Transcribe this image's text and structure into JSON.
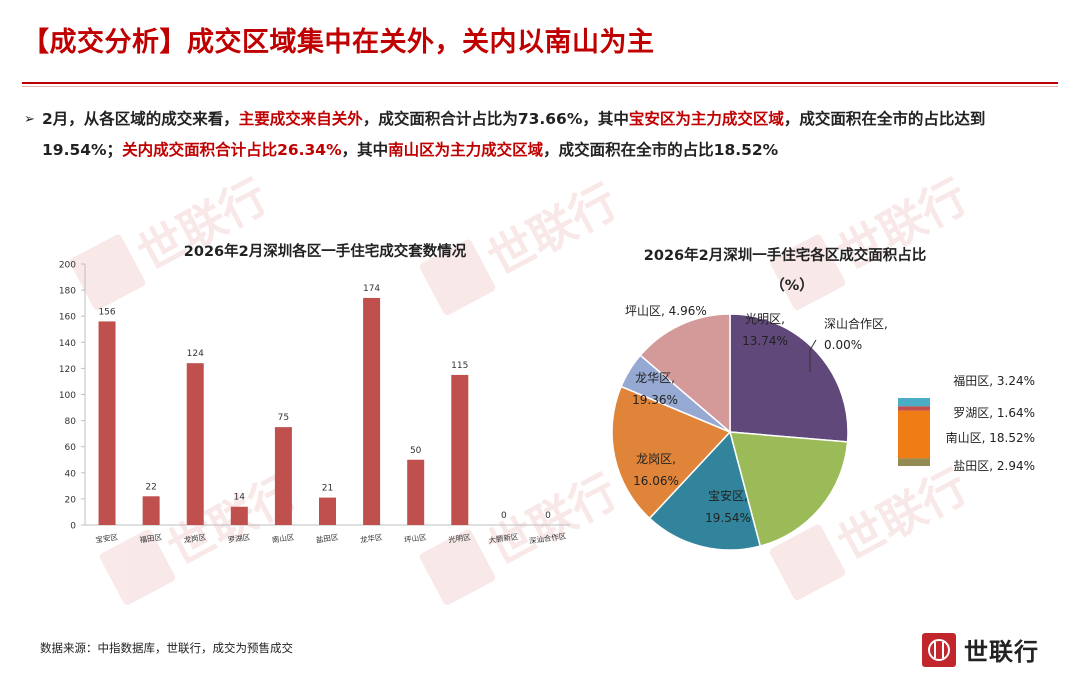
{
  "header": {
    "title": "【成交分析】成交区域集中在关外，关内以南山为主"
  },
  "summary": {
    "bullet": "➢",
    "parts": [
      {
        "text": "2月，从各区域的成交来看，",
        "highlight": false
      },
      {
        "text": "主要成交来自关外",
        "highlight": true
      },
      {
        "text": "，成交面积合计占比为73.66%，其中",
        "highlight": false
      },
      {
        "text": "宝安区为主力成交区域",
        "highlight": true
      },
      {
        "text": "，成交面积在全市的占比达到19.54%；",
        "highlight": false
      },
      {
        "text": "关内成交面积合计占比26.34%",
        "highlight": true
      },
      {
        "text": "，其中",
        "highlight": false
      },
      {
        "text": "南山区为主力成交区域",
        "highlight": true
      },
      {
        "text": "，成交面积在全市的占比18.52%",
        "highlight": false
      }
    ]
  },
  "watermark": {
    "text": "世联行"
  },
  "footer": {
    "source": "数据来源：中指数据库，世联行，成交为预售成交",
    "logo_text": "世联行"
  },
  "colors": {
    "title_red": "#c00000",
    "bar_fill": "#c0504d",
    "logo_red": "#c0262c"
  },
  "chart_data": [
    {
      "type": "bar",
      "title": "2026年2月深圳各区一手住宅成交套数情况",
      "categories": [
        "宝安区",
        "福田区",
        "龙岗区",
        "罗湖区",
        "南山区",
        "盐田区",
        "龙华区",
        "坪山区",
        "光明区",
        "大鹏新区",
        "深汕合作区"
      ],
      "values": [
        156,
        22,
        124,
        14,
        75,
        21,
        174,
        50,
        115,
        0,
        0
      ],
      "ylim": [
        0,
        200
      ],
      "yticks": [
        0,
        20,
        40,
        60,
        80,
        100,
        120,
        140,
        160,
        180,
        200
      ],
      "grid": false,
      "data_labels": true
    },
    {
      "type": "pie",
      "title": "2026年2月深圳一手住宅各区成交面积占比",
      "subtitle": "（%）",
      "slices": [
        {
          "label": "深山合作区",
          "value": 0.0,
          "color": "#8064a2"
        },
        {
          "label": "宝安区",
          "value": 19.54,
          "color": "#9bbb59"
        },
        {
          "label": "龙岗区",
          "value": 16.06,
          "color": "#31849b"
        },
        {
          "label": "龙华区",
          "value": 19.36,
          "color": "#e0843a"
        },
        {
          "label": "坪山区",
          "value": 4.96,
          "color": "#95a9d3"
        },
        {
          "label": "光明区",
          "value": 13.74,
          "color": "#d49a9a"
        }
      ],
      "big_slice": {
        "value": 26.34,
        "color": "#60497a"
      },
      "breakout": [
        {
          "label": "福田区",
          "value": 3.24,
          "color": "#4bacc6"
        },
        {
          "label": "罗湖区",
          "value": 1.64,
          "color": "#c0504d"
        },
        {
          "label": "南山区",
          "value": 18.52,
          "color": "#f07c16"
        },
        {
          "label": "盐田区",
          "value": 2.94,
          "color": "#948a54"
        }
      ]
    }
  ]
}
